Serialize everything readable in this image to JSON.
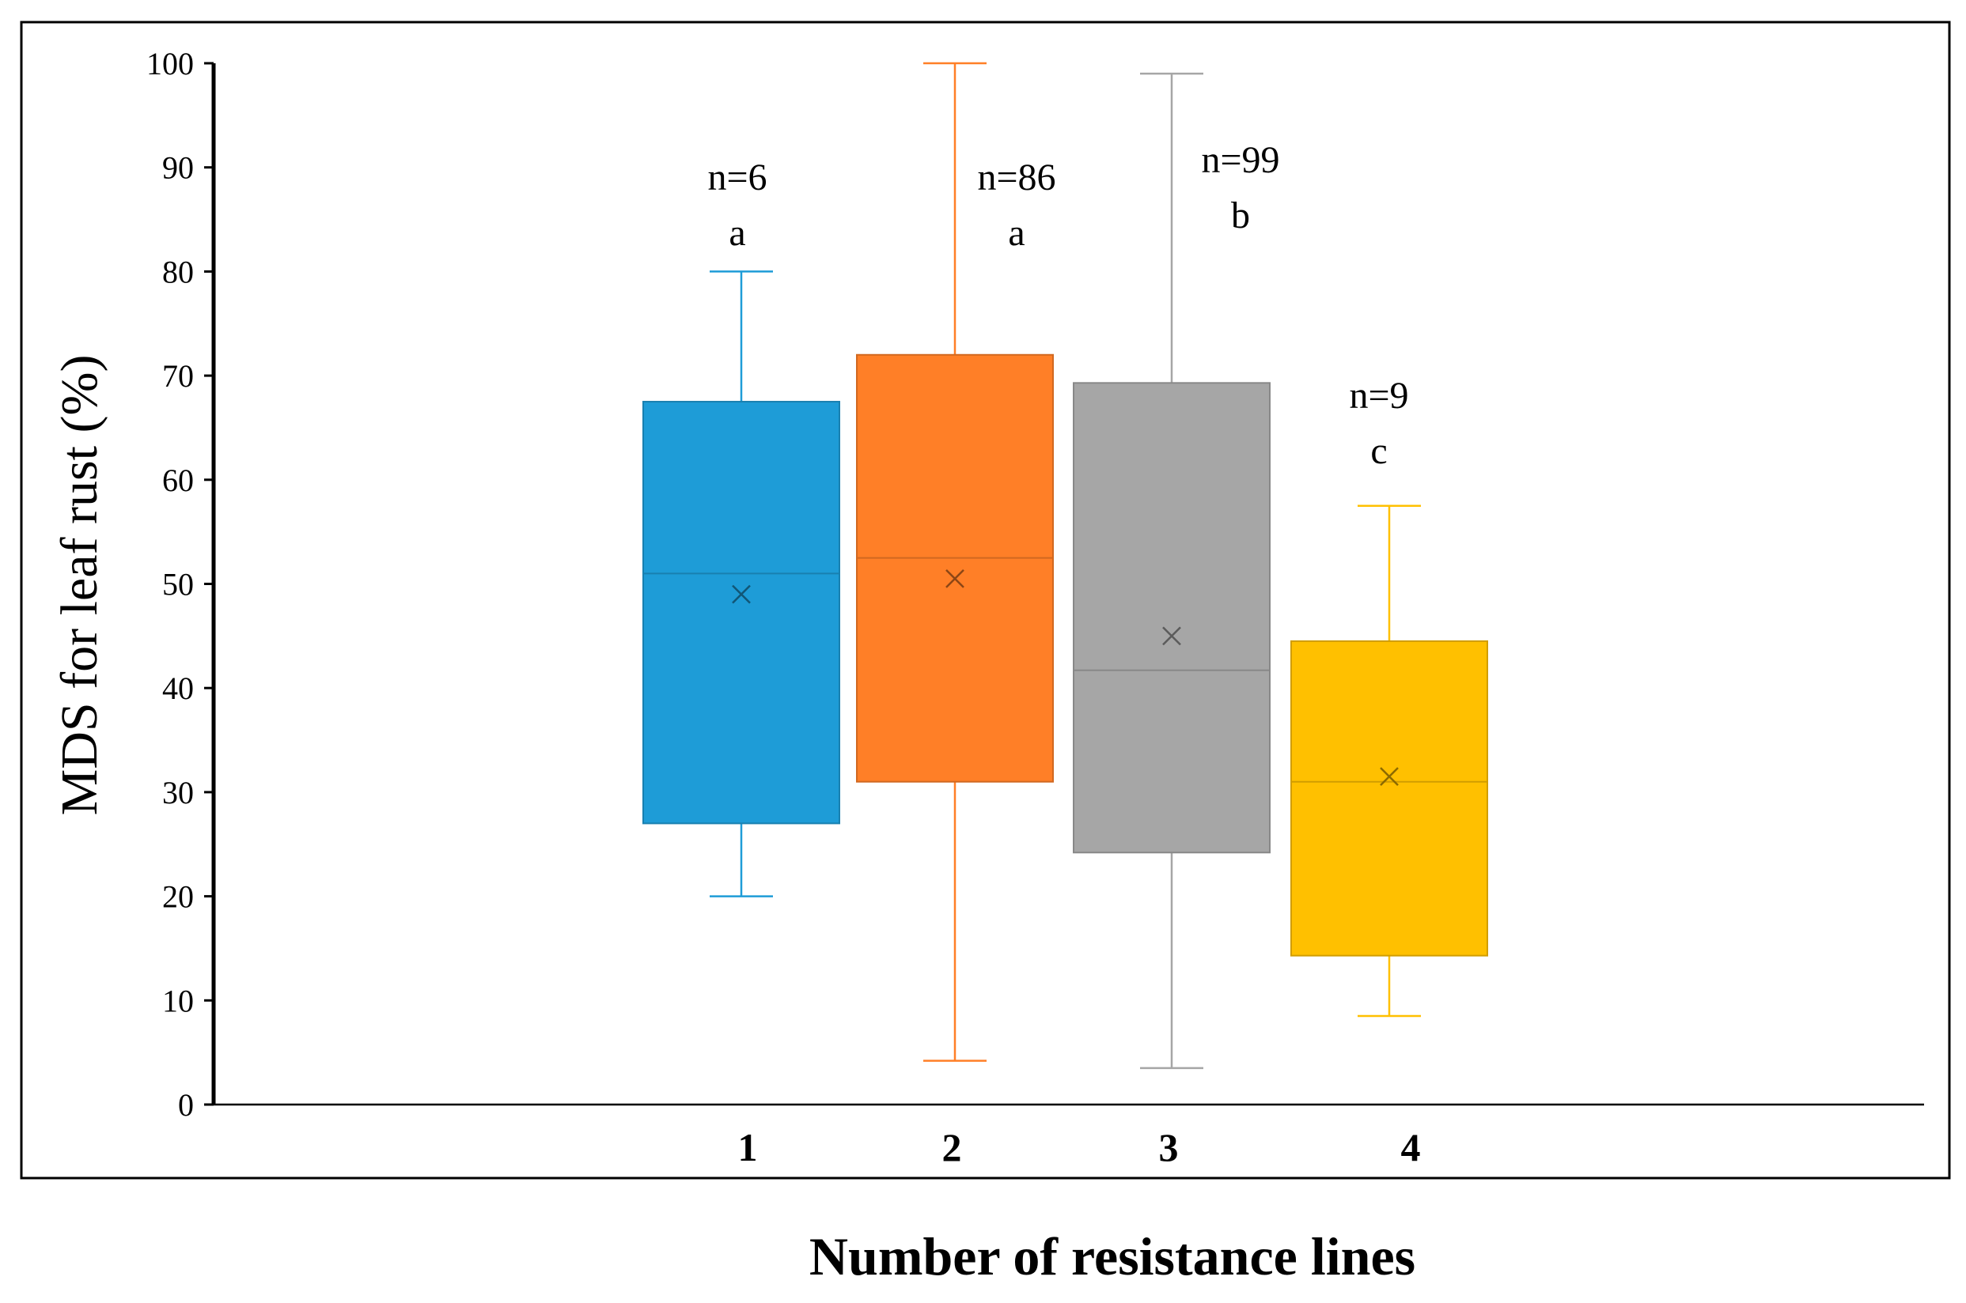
{
  "chart_data": {
    "type": "box",
    "title": "",
    "xlabel": "Number of resistance lines",
    "ylabel": "MDS for leaf rust (%)",
    "ylim": [
      0,
      100
    ],
    "yticks": [
      0,
      10,
      20,
      30,
      40,
      50,
      60,
      70,
      80,
      90,
      100
    ],
    "ytick_labels": [
      "0",
      "10",
      "20",
      "30",
      "40",
      "50",
      "60",
      "70",
      "80",
      "90",
      "100"
    ],
    "categories": [
      "1",
      "2",
      "3",
      "4"
    ],
    "grid": false,
    "boxes": [
      {
        "category": "1",
        "min": 20,
        "q1": 27,
        "median": 51,
        "q3": 67.5,
        "max": 80,
        "mean": 49,
        "color": "#1e9cd7",
        "n_label": "n=6",
        "group_letter": "a"
      },
      {
        "category": "2",
        "min": 4.2,
        "q1": 31,
        "median": 52.5,
        "q3": 72,
        "max": 100,
        "mean": 50.5,
        "color": "#ff7f27",
        "n_label": "n=86",
        "group_letter": "a"
      },
      {
        "category": "3",
        "min": 3.5,
        "q1": 24.2,
        "median": 41.7,
        "q3": 69.3,
        "max": 99,
        "mean": 45,
        "color": "#a6a6a6",
        "n_label": "n=99",
        "group_letter": "b"
      },
      {
        "category": "4",
        "min": 8.5,
        "q1": 14.3,
        "median": 31,
        "q3": 44.5,
        "max": 57.5,
        "mean": 31.5,
        "color": "#ffc000",
        "n_label": "n=9",
        "group_letter": "c"
      }
    ]
  }
}
